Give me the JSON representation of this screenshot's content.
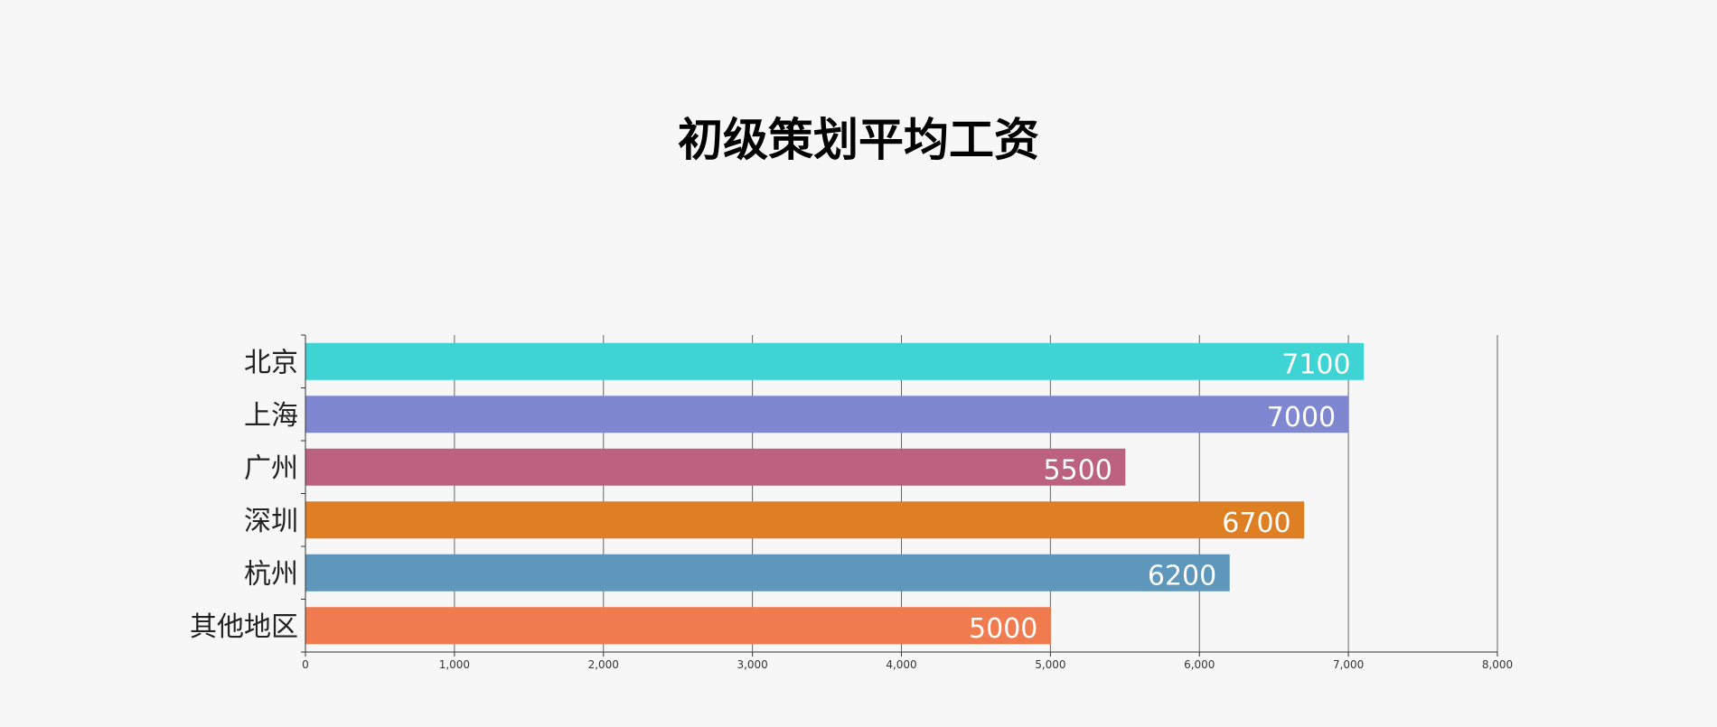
{
  "chart_data": {
    "type": "bar",
    "orientation": "horizontal",
    "title": "初级策划平均工资",
    "categories": [
      "北京",
      "上海",
      "广州",
      "深圳",
      "杭州",
      "其他地区"
    ],
    "values": [
      7100,
      7000,
      5500,
      6700,
      6200,
      5000
    ],
    "value_labels": [
      "7100",
      "7000",
      "5500",
      "6700",
      "6200",
      "5000"
    ],
    "colors": [
      "#3fd4d4",
      "#7e87d0",
      "#bc6280",
      "#dd7f22",
      "#5e97bb",
      "#f07b4e"
    ],
    "xlim": [
      0,
      8000
    ],
    "x_ticks": [
      0,
      1000,
      2000,
      3000,
      4000,
      5000,
      6000,
      7000,
      8000
    ],
    "x_tick_labels": [
      "0",
      "1,000",
      "2,000",
      "3,000",
      "4,000",
      "5,000",
      "6,000",
      "7,000",
      "8,000"
    ],
    "grid": true,
    "legend": "none",
    "xlabel": "",
    "ylabel": ""
  }
}
